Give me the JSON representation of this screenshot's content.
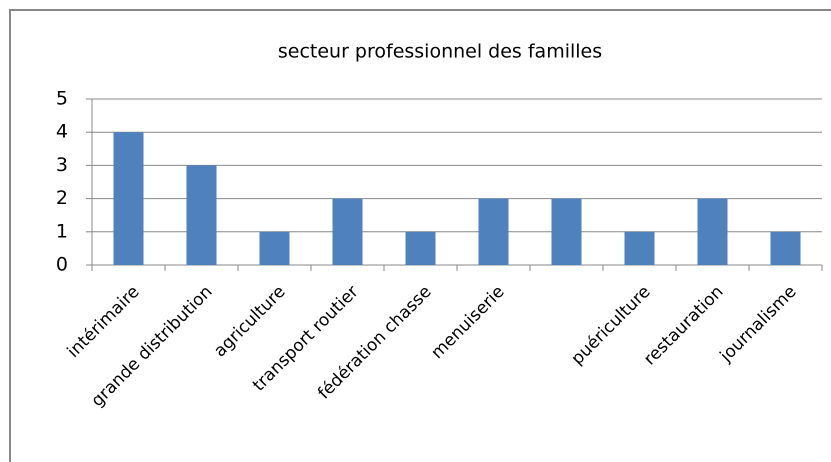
{
  "chart_data": {
    "type": "bar",
    "title": "secteur professionnel des familles",
    "categories": [
      "intérimaire",
      "grande distribution",
      "agriculture",
      "transport routier",
      "fédération chasse",
      "menuiserie",
      null,
      "puériculture",
      "restauration",
      "journalisme"
    ],
    "values": [
      4,
      3,
      1,
      2,
      1,
      2,
      2,
      1,
      2,
      1
    ],
    "color": "#4f81bd",
    "ylim": [
      0,
      5
    ],
    "yticks": [
      0,
      1,
      2,
      3,
      4,
      5
    ],
    "grid": true
  }
}
